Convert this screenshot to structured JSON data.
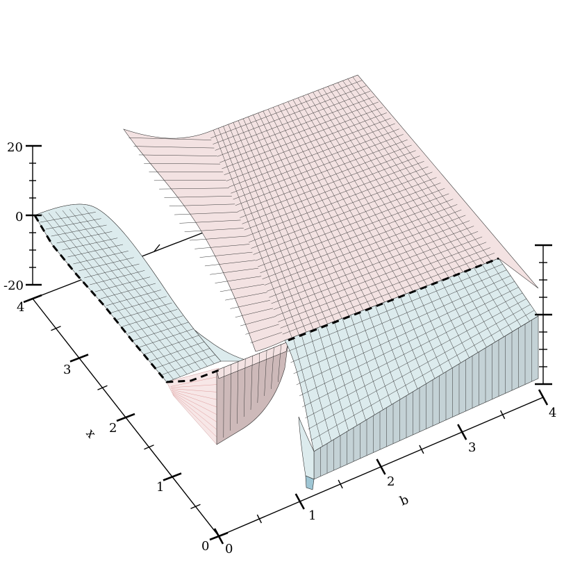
{
  "chart_data": {
    "type": "surface3d",
    "title": "",
    "axes": {
      "b": {
        "label": "b",
        "range": [
          0,
          4
        ],
        "ticks": [
          "0",
          "1",
          "2",
          "3",
          "4"
        ]
      },
      "x": {
        "label": "x",
        "range": [
          0,
          4
        ],
        "ticks": [
          "0",
          "1",
          "2",
          "3",
          "4"
        ]
      },
      "z": {
        "label": "",
        "range": [
          -20,
          20
        ],
        "ticks": [
          "-20",
          "0",
          "20"
        ]
      }
    },
    "surfaces": [
      {
        "name": "",
        "color": "#f3e2e2",
        "region": "b < 1, x > b"
      },
      {
        "name": "",
        "color": "#dcebed",
        "region": "b < 1, x < b"
      },
      {
        "name": "",
        "color": "#f3e2e2",
        "region": "b > 1, x > b"
      },
      {
        "name": "",
        "color": "#dcebed",
        "region": "b > 1, x < b"
      }
    ],
    "contour": {
      "style": "dashed",
      "value": 0
    },
    "grid": true
  }
}
